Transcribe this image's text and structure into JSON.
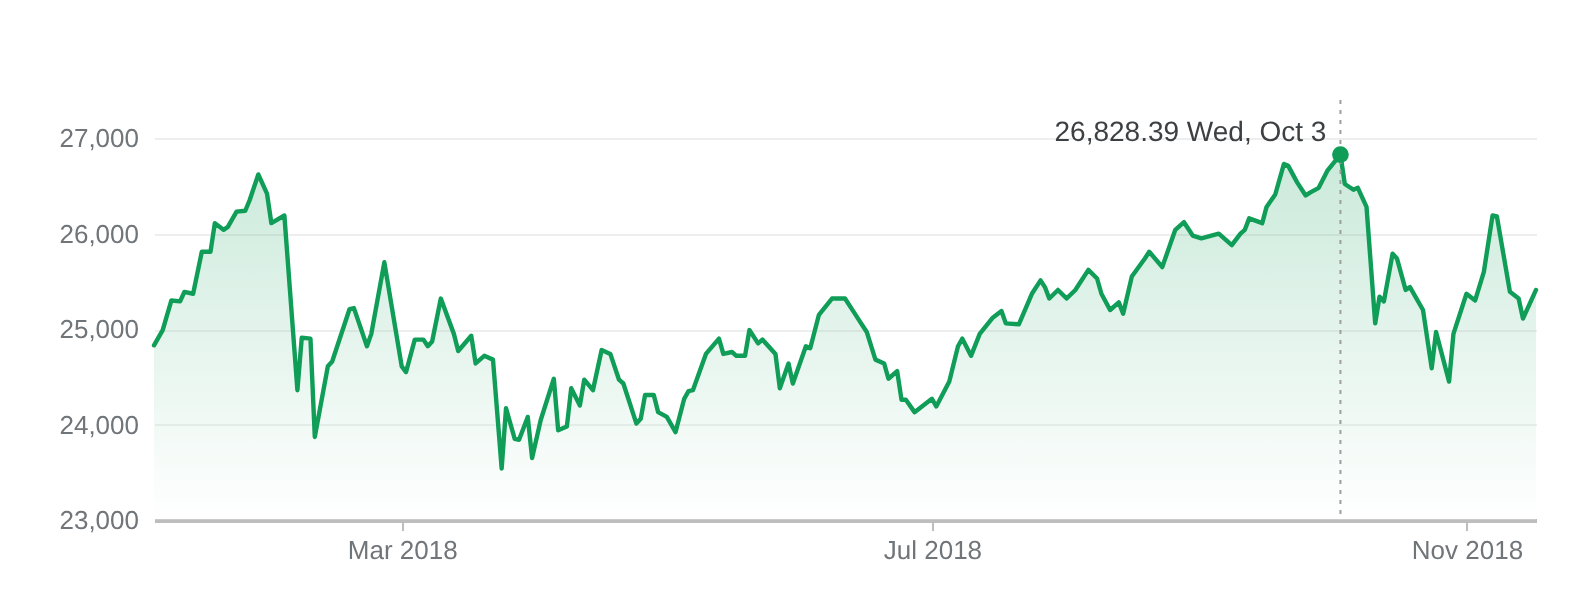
{
  "chart_data": {
    "type": "area",
    "grid": "y",
    "xlim": [
      "2018-01-03",
      "2018-11-17"
    ],
    "xticks": [
      {
        "value": "2018-03-01",
        "label": "Mar 2018"
      },
      {
        "value": "2018-07-01",
        "label": "Jul 2018"
      },
      {
        "value": "2018-11-01",
        "label": "Nov 2018"
      }
    ],
    "ylim": [
      23000,
      27400
    ],
    "yticks": [
      {
        "value": 23000,
        "label": "23,000"
      },
      {
        "value": 24000,
        "label": "24,000"
      },
      {
        "value": 25000,
        "label": "25,000"
      },
      {
        "value": 26000,
        "label": "26,000"
      },
      {
        "value": 27000,
        "label": "27,000"
      }
    ],
    "ref_lines": [
      {
        "axis": "x",
        "value": "2018-10-03",
        "color": "#9e9e9e",
        "line_style": "dotted"
      }
    ],
    "annotations": [
      {
        "text": "26,828.39  Wed, Oct 3",
        "x": "2018-10-03",
        "y": 26828.39
      }
    ],
    "x": [
      "2018-01-03",
      "2018-01-05",
      "2018-01-07",
      "2018-01-09",
      "2018-01-10",
      "2018-01-12",
      "2018-01-14",
      "2018-01-16",
      "2018-01-17",
      "2018-01-19",
      "2018-01-20",
      "2018-01-22",
      "2018-01-24",
      "2018-01-25",
      "2018-01-27",
      "2018-01-29",
      "2018-01-30",
      "2018-02-02",
      "2018-02-05",
      "2018-02-06",
      "2018-02-08",
      "2018-02-09",
      "2018-02-12",
      "2018-02-13",
      "2018-02-17",
      "2018-02-18",
      "2018-02-21",
      "2018-02-22",
      "2018-02-25",
      "2018-03-01",
      "2018-03-02",
      "2018-03-04",
      "2018-03-06",
      "2018-03-07",
      "2018-03-08",
      "2018-03-10",
      "2018-03-13",
      "2018-03-14",
      "2018-03-17",
      "2018-03-18",
      "2018-03-20",
      "2018-03-22",
      "2018-03-24",
      "2018-03-25",
      "2018-03-27",
      "2018-03-28",
      "2018-03-30",
      "2018-03-31",
      "2018-04-02",
      "2018-04-05",
      "2018-04-06",
      "2018-04-08",
      "2018-04-09",
      "2018-04-11",
      "2018-04-12",
      "2018-04-14",
      "2018-04-16",
      "2018-04-18",
      "2018-04-20",
      "2018-04-21",
      "2018-04-24",
      "2018-04-25",
      "2018-04-26",
      "2018-04-28",
      "2018-04-29",
      "2018-05-01",
      "2018-05-03",
      "2018-05-05",
      "2018-05-06",
      "2018-05-07",
      "2018-05-10",
      "2018-05-13",
      "2018-05-14",
      "2018-05-16",
      "2018-05-17",
      "2018-05-19",
      "2018-05-20",
      "2018-05-22",
      "2018-05-23",
      "2018-05-26",
      "2018-05-27",
      "2018-05-29",
      "2018-05-30",
      "2018-06-02",
      "2018-06-03",
      "2018-06-05",
      "2018-06-08",
      "2018-06-11",
      "2018-06-13",
      "2018-06-14",
      "2018-06-16",
      "2018-06-18",
      "2018-06-20",
      "2018-06-21",
      "2018-06-23",
      "2018-06-24",
      "2018-06-25",
      "2018-06-27",
      "2018-06-29",
      "2018-07-01",
      "2018-07-02",
      "2018-07-05",
      "2018-07-07",
      "2018-07-08",
      "2018-07-10",
      "2018-07-12",
      "2018-07-15",
      "2018-07-17",
      "2018-07-18",
      "2018-07-21",
      "2018-07-24",
      "2018-07-26",
      "2018-07-27",
      "2018-07-28",
      "2018-07-30",
      "2018-08-01",
      "2018-08-03",
      "2018-08-04",
      "2018-08-06",
      "2018-08-08",
      "2018-08-09",
      "2018-08-11",
      "2018-08-13",
      "2018-08-14",
      "2018-08-16",
      "2018-08-19",
      "2018-08-20",
      "2018-08-23",
      "2018-08-26",
      "2018-08-28",
      "2018-08-30",
      "2018-09-01",
      "2018-09-05",
      "2018-09-08",
      "2018-09-10",
      "2018-09-11",
      "2018-09-12",
      "2018-09-15",
      "2018-09-16",
      "2018-09-18",
      "2018-09-20",
      "2018-09-21",
      "2018-09-23",
      "2018-09-25",
      "2018-09-26",
      "2018-09-28",
      "2018-09-30",
      "2018-10-03",
      "2018-10-04",
      "2018-10-06",
      "2018-10-07",
      "2018-10-09",
      "2018-10-11",
      "2018-10-12",
      "2018-10-13",
      "2018-10-15",
      "2018-10-16",
      "2018-10-18",
      "2018-10-19",
      "2018-10-22",
      "2018-10-24",
      "2018-10-25",
      "2018-10-28",
      "2018-10-29",
      "2018-11-01",
      "2018-11-03",
      "2018-11-05",
      "2018-11-07",
      "2018-11-08",
      "2018-11-11",
      "2018-11-13",
      "2018-11-14",
      "2018-11-17"
    ],
    "series": [
      {
        "color": "#0f9d58",
        "values": [
          24830,
          24990,
          25300,
          25290,
          25390,
          25370,
          25810,
          25810,
          26110,
          26040,
          26070,
          26230,
          26240,
          26350,
          26620,
          26420,
          26110,
          26190,
          24360,
          24910,
          24900,
          23870,
          24610,
          24660,
          25210,
          25220,
          24820,
          24950,
          25700,
          24610,
          24550,
          24890,
          24890,
          24820,
          24870,
          25320,
          24950,
          24770,
          24930,
          24640,
          24720,
          24680,
          23540,
          24170,
          23850,
          23840,
          24080,
          23650,
          24050,
          24480,
          23940,
          23980,
          24380,
          24200,
          24470,
          24360,
          24780,
          24740,
          24470,
          24430,
          24010,
          24060,
          24310,
          24310,
          24130,
          24080,
          23920,
          24270,
          24350,
          24360,
          24740,
          24900,
          24740,
          24760,
          24720,
          24720,
          24990,
          24850,
          24890,
          24740,
          24380,
          24640,
          24430,
          24820,
          24800,
          25150,
          25320,
          25320,
          25180,
          25110,
          24970,
          24680,
          24640,
          24480,
          24560,
          24260,
          24260,
          24130,
          24200,
          24270,
          24190,
          24450,
          24820,
          24900,
          24720,
          24950,
          25120,
          25190,
          25060,
          25050,
          25370,
          25510,
          25440,
          25320,
          25410,
          25320,
          25410,
          25480,
          25620,
          25530,
          25370,
          25200,
          25280,
          25160,
          25550,
          25740,
          25810,
          25650,
          26040,
          26120,
          25980,
          25950,
          26000,
          25880,
          26000,
          26040,
          26160,
          26110,
          26280,
          26410,
          26730,
          26710,
          26540,
          26400,
          26430,
          26480,
          26660,
          26828.39,
          26520,
          26460,
          26480,
          26280,
          25060,
          25340,
          25290,
          25790,
          25740,
          25410,
          25440,
          25200,
          24590,
          24970,
          24450,
          24950,
          25370,
          25300,
          25600,
          26190,
          26180,
          25390,
          25320,
          25110,
          25410
        ]
      }
    ]
  }
}
